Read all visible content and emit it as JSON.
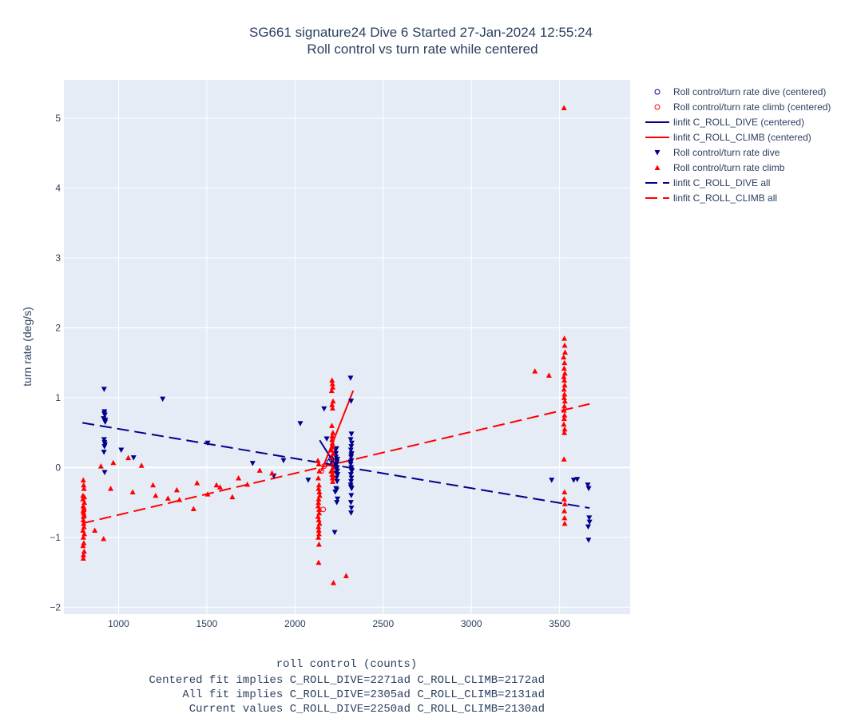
{
  "chart_data": {
    "type": "scatter",
    "title": "SG661 signature24 Dive 6 Started 27-Jan-2024 12:55:24",
    "subtitle": "Roll control vs turn rate while centered",
    "xlabel": "roll control (counts)",
    "xlabel_notes": [
      "Centered fit implies C_ROLL_DIVE=2271ad C_ROLL_CLIMB=2172ad",
      "All fit implies C_ROLL_DIVE=2305ad C_ROLL_CLIMB=2131ad",
      "Current values C_ROLL_DIVE=2250ad C_ROLL_CLIMB=2130ad"
    ],
    "ylabel": "turn rate (deg/s)",
    "xlim": [
      690,
      3900
    ],
    "ylim": [
      -2.1,
      5.55
    ],
    "xticks": [
      1000,
      1500,
      2000,
      2500,
      3000,
      3500
    ],
    "xtick_labels": [
      "1000",
      "1500",
      "2000",
      "2500",
      "3000",
      "3500"
    ],
    "yticks": [
      -2,
      -1,
      0,
      1,
      2,
      3,
      4,
      5
    ],
    "ytick_labels": [
      "−2",
      "−1",
      "0",
      "1",
      "2",
      "3",
      "4",
      "5"
    ],
    "grid": true,
    "legend_position": "right",
    "colors": {
      "dive": "#00008b",
      "climb": "#ff0000",
      "plot_bg": "#e5ecf6",
      "text": "#2a3f5f"
    },
    "series": [
      {
        "name": "Roll control/turn rate dive (centered)",
        "kind": "scatter",
        "marker": "circle-open",
        "color": "#00008b",
        "x": [
          2195,
          2205,
          2215
        ],
        "y": [
          0.08,
          0.12,
          0.05
        ]
      },
      {
        "name": "Roll control/turn rate climb (centered)",
        "kind": "scatter",
        "marker": "circle-open",
        "color": "#ff0000",
        "x": [
          2160,
          2165,
          2150
        ],
        "y": [
          -0.6,
          0.02,
          -0.05
        ]
      },
      {
        "name": "linfit C_ROLL_DIVE (centered)",
        "kind": "line",
        "dash": "solid",
        "color": "#00008b",
        "x": [
          2140,
          2230
        ],
        "y": [
          0.39,
          0.03
        ]
      },
      {
        "name": "linfit C_ROLL_CLIMB (centered)",
        "kind": "line",
        "dash": "solid",
        "color": "#ff0000",
        "x": [
          2150,
          2330
        ],
        "y": [
          -0.05,
          1.1
        ]
      },
      {
        "name": "Roll control/turn rate dive",
        "kind": "scatter",
        "marker": "triangle-down",
        "color": "#00008b",
        "x": [
          918,
          920,
          922,
          915,
          925,
          918,
          920,
          923,
          917,
          921,
          919,
          924,
          920,
          1015,
          1085,
          1250,
          1505,
          1760,
          1880,
          1935,
          2030,
          2075,
          2165,
          2180,
          2230,
          2232,
          2234,
          2236,
          2238,
          2240,
          2242,
          2235,
          2239,
          2233,
          2241,
          2237,
          2236,
          2232,
          2235,
          2238,
          2240,
          2236,
          2234,
          2225,
          2228,
          2315,
          2318,
          2320,
          2316,
          2322,
          2319,
          2317,
          2321,
          2318,
          2320,
          2316,
          2319,
          2322,
          2317,
          2320,
          2318,
          2316,
          2321,
          2319,
          2317,
          2320,
          2318,
          2321,
          2316,
          2319,
          2317,
          3455,
          3580,
          3600,
          3660,
          3665,
          3668,
          3662,
          3670,
          3664
        ],
        "y": [
          1.12,
          0.8,
          0.75,
          0.7,
          0.68,
          0.4,
          0.36,
          0.33,
          0.22,
          -0.07,
          0.77,
          0.65,
          0.3,
          0.25,
          0.14,
          0.98,
          0.35,
          0.06,
          -0.12,
          0.1,
          0.63,
          -0.18,
          0.84,
          0.41,
          0.25,
          0.15,
          0.1,
          0.05,
          0.0,
          -0.05,
          -0.1,
          -0.15,
          -0.2,
          -0.3,
          -0.45,
          -0.5,
          -0.32,
          0.2,
          0.27,
          0.08,
          0.12,
          -0.02,
          -0.08,
          -0.93,
          -0.35,
          1.28,
          0.95,
          0.48,
          0.4,
          0.35,
          0.3,
          0.25,
          0.2,
          0.15,
          0.1,
          0.05,
          0.0,
          -0.05,
          -0.1,
          -0.15,
          -0.2,
          -0.25,
          -0.3,
          -0.4,
          -0.5,
          -0.58,
          -0.65,
          -0.05,
          0.08,
          0.18,
          -0.28,
          -0.18,
          -0.18,
          -0.17,
          -0.25,
          -0.3,
          -0.72,
          -0.85,
          -0.78,
          -1.04
        ]
      },
      {
        "name": "Roll control/turn rate climb",
        "kind": "scatter",
        "marker": "triangle-up",
        "color": "#ff0000",
        "x": [
          800,
          802,
          804,
          798,
          806,
          800,
          803,
          799,
          805,
          801,
          800,
          802,
          804,
          798,
          806,
          800,
          803,
          799,
          805,
          801,
          800,
          802,
          804,
          798,
          806,
          865,
          900,
          915,
          955,
          970,
          1055,
          1080,
          1130,
          1195,
          1210,
          1280,
          1330,
          1345,
          1425,
          1445,
          1505,
          1555,
          1575,
          1645,
          1680,
          1730,
          1800,
          1870,
          2130,
          2135,
          2138,
          2132,
          2136,
          2134,
          2140,
          2133,
          2137,
          2131,
          2139,
          2135,
          2133,
          2136,
          2138,
          2134,
          2132,
          2137,
          2135,
          2133,
          2136,
          2134,
          2210,
          2212,
          2214,
          2208,
          2216,
          2210,
          2213,
          2209,
          2215,
          2211,
          2210,
          2212,
          2214,
          2208,
          2216,
          2210,
          2213,
          2209,
          2215,
          2211,
          2210,
          2212,
          2214,
          2205,
          2218,
          2218,
          2290,
          3360,
          3440,
          3525,
          3527,
          3529,
          3531,
          3523,
          3528,
          3526,
          3530,
          3524,
          3527,
          3529,
          3525,
          3528,
          3526,
          3530,
          3527,
          3525,
          3528,
          3526,
          3524,
          3529,
          3527,
          3525,
          3528,
          3526,
          3530,
          3527,
          3528,
          3529
        ],
        "y": [
          -0.18,
          -0.25,
          -0.3,
          -0.45,
          -0.5,
          -0.55,
          -0.6,
          -0.62,
          -0.68,
          -0.7,
          -0.75,
          -0.8,
          -0.85,
          -0.9,
          -0.95,
          -1.0,
          -1.08,
          -1.12,
          -1.2,
          -1.25,
          -1.3,
          -0.65,
          -0.58,
          -0.4,
          -0.42,
          -0.9,
          0.02,
          -1.02,
          -0.3,
          0.07,
          0.14,
          -0.35,
          0.03,
          -0.25,
          -0.4,
          -0.44,
          -0.32,
          -0.46,
          -0.59,
          -0.22,
          -0.38,
          -0.25,
          -0.28,
          -0.42,
          -0.15,
          -0.24,
          -0.04,
          -0.08,
          0.1,
          0.05,
          -0.05,
          -0.15,
          -0.25,
          -0.3,
          -0.4,
          -0.5,
          -0.6,
          -0.7,
          -0.8,
          -0.9,
          -1.0,
          -1.1,
          -0.35,
          -0.45,
          -0.55,
          -0.65,
          -0.75,
          -0.85,
          -0.95,
          -1.36,
          1.25,
          1.2,
          1.15,
          1.1,
          0.95,
          0.9,
          0.85,
          0.6,
          0.5,
          0.45,
          0.4,
          0.35,
          0.3,
          0.25,
          0.2,
          0.15,
          0.1,
          0.05,
          0.0,
          -0.05,
          -0.1,
          -0.15,
          -0.2,
          -0.05,
          -0.12,
          -1.65,
          -1.55,
          1.38,
          1.32,
          5.15,
          1.85,
          1.75,
          1.65,
          1.58,
          1.5,
          1.42,
          1.35,
          1.3,
          1.25,
          1.18,
          1.12,
          1.05,
          1.0,
          0.95,
          0.88,
          0.82,
          0.75,
          0.7,
          0.62,
          0.55,
          0.5,
          0.12,
          -0.35,
          -0.45,
          -0.52,
          -0.62,
          -0.72,
          -0.8
        ]
      },
      {
        "name": "linfit C_ROLL_DIVE all",
        "kind": "line",
        "dash": "dash",
        "color": "#00008b",
        "x": [
          795,
          3670
        ],
        "y": [
          0.64,
          -0.58
        ]
      },
      {
        "name": "linfit C_ROLL_CLIMB all",
        "kind": "line",
        "dash": "dash",
        "color": "#ff0000",
        "x": [
          795,
          3670
        ],
        "y": [
          -0.8,
          0.91
        ]
      }
    ]
  }
}
